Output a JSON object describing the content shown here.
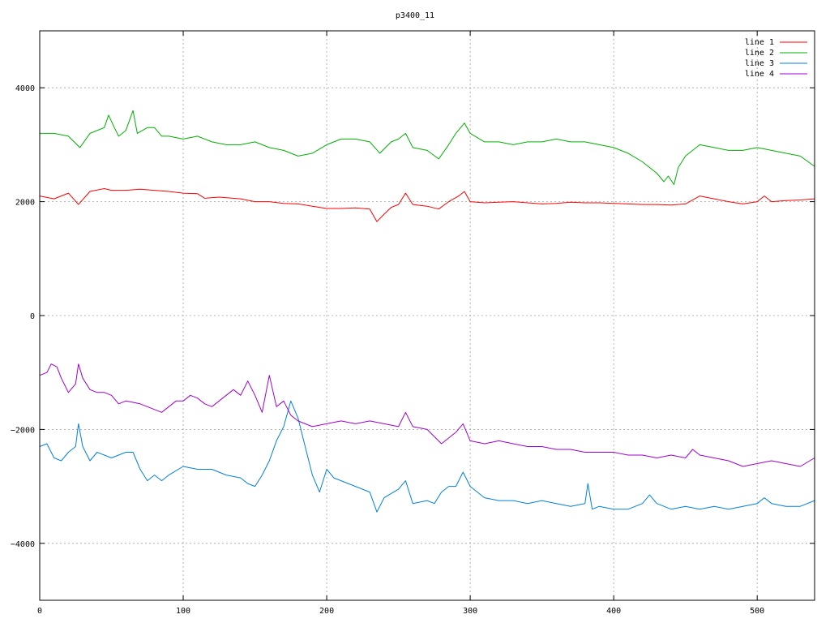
{
  "chart_data": {
    "type": "line",
    "title": "p3400_11",
    "xlim": [
      0,
      540
    ],
    "ylim": [
      -5000,
      5000
    ],
    "x_ticks": [
      0,
      100,
      200,
      300,
      400,
      500
    ],
    "y_ticks": [
      -4000,
      -2000,
      0,
      2000,
      4000
    ],
    "grid": true,
    "legend_position": "top-right",
    "series": [
      {
        "name": "line 1",
        "color": "#ff0000",
        "points": [
          [
            0,
            2100
          ],
          [
            10,
            2050
          ],
          [
            20,
            2150
          ],
          [
            27,
            1950
          ],
          [
            35,
            2180
          ],
          [
            45,
            2230
          ],
          [
            50,
            2200
          ],
          [
            60,
            2200
          ],
          [
            70,
            2220
          ],
          [
            80,
            2200
          ],
          [
            90,
            2180
          ],
          [
            100,
            2150
          ],
          [
            110,
            2140
          ],
          [
            115,
            2060
          ],
          [
            125,
            2080
          ],
          [
            140,
            2050
          ],
          [
            150,
            2000
          ],
          [
            160,
            2000
          ],
          [
            170,
            1970
          ],
          [
            180,
            1960
          ],
          [
            190,
            1920
          ],
          [
            200,
            1880
          ],
          [
            210,
            1880
          ],
          [
            220,
            1890
          ],
          [
            230,
            1870
          ],
          [
            235,
            1650
          ],
          [
            240,
            1780
          ],
          [
            245,
            1900
          ],
          [
            250,
            1950
          ],
          [
            255,
            2150
          ],
          [
            260,
            1950
          ],
          [
            270,
            1920
          ],
          [
            278,
            1870
          ],
          [
            285,
            2000
          ],
          [
            292,
            2100
          ],
          [
            296,
            2180
          ],
          [
            300,
            2000
          ],
          [
            310,
            1980
          ],
          [
            320,
            1990
          ],
          [
            330,
            2000
          ],
          [
            340,
            1980
          ],
          [
            350,
            1960
          ],
          [
            360,
            1970
          ],
          [
            370,
            1990
          ],
          [
            380,
            1980
          ],
          [
            390,
            1980
          ],
          [
            400,
            1970
          ],
          [
            410,
            1960
          ],
          [
            420,
            1950
          ],
          [
            430,
            1950
          ],
          [
            440,
            1940
          ],
          [
            450,
            1960
          ],
          [
            460,
            2100
          ],
          [
            470,
            2050
          ],
          [
            480,
            2000
          ],
          [
            490,
            1960
          ],
          [
            500,
            2000
          ],
          [
            505,
            2100
          ],
          [
            510,
            2000
          ],
          [
            520,
            2020
          ],
          [
            530,
            2030
          ],
          [
            540,
            2050
          ]
        ]
      },
      {
        "name": "line 2",
        "color": "#00b000",
        "points": [
          [
            0,
            3200
          ],
          [
            10,
            3200
          ],
          [
            20,
            3150
          ],
          [
            28,
            2950
          ],
          [
            35,
            3200
          ],
          [
            45,
            3300
          ],
          [
            48,
            3520
          ],
          [
            52,
            3300
          ],
          [
            55,
            3150
          ],
          [
            60,
            3250
          ],
          [
            65,
            3600
          ],
          [
            68,
            3200
          ],
          [
            75,
            3300
          ],
          [
            80,
            3300
          ],
          [
            85,
            3150
          ],
          [
            90,
            3150
          ],
          [
            100,
            3100
          ],
          [
            110,
            3150
          ],
          [
            120,
            3050
          ],
          [
            130,
            3000
          ],
          [
            140,
            3000
          ],
          [
            150,
            3050
          ],
          [
            160,
            2950
          ],
          [
            170,
            2900
          ],
          [
            180,
            2800
          ],
          [
            190,
            2850
          ],
          [
            200,
            3000
          ],
          [
            210,
            3100
          ],
          [
            220,
            3100
          ],
          [
            230,
            3050
          ],
          [
            237,
            2850
          ],
          [
            245,
            3050
          ],
          [
            250,
            3100
          ],
          [
            255,
            3200
          ],
          [
            260,
            2950
          ],
          [
            270,
            2900
          ],
          [
            278,
            2750
          ],
          [
            285,
            3000
          ],
          [
            290,
            3200
          ],
          [
            296,
            3380
          ],
          [
            300,
            3200
          ],
          [
            310,
            3050
          ],
          [
            320,
            3050
          ],
          [
            330,
            3000
          ],
          [
            340,
            3050
          ],
          [
            350,
            3050
          ],
          [
            360,
            3100
          ],
          [
            370,
            3050
          ],
          [
            380,
            3050
          ],
          [
            390,
            3000
          ],
          [
            400,
            2950
          ],
          [
            410,
            2850
          ],
          [
            420,
            2700
          ],
          [
            430,
            2500
          ],
          [
            435,
            2350
          ],
          [
            438,
            2450
          ],
          [
            442,
            2300
          ],
          [
            445,
            2600
          ],
          [
            450,
            2800
          ],
          [
            460,
            3000
          ],
          [
            470,
            2950
          ],
          [
            480,
            2900
          ],
          [
            490,
            2900
          ],
          [
            500,
            2950
          ],
          [
            510,
            2900
          ],
          [
            520,
            2850
          ],
          [
            530,
            2800
          ],
          [
            540,
            2620
          ]
        ]
      },
      {
        "name": "line 3",
        "color": "#0080e0",
        "points": [
          [
            0,
            -2300
          ],
          [
            5,
            -2250
          ],
          [
            10,
            -2500
          ],
          [
            15,
            -2550
          ],
          [
            20,
            -2400
          ],
          [
            25,
            -2300
          ],
          [
            27,
            -1900
          ],
          [
            30,
            -2300
          ],
          [
            35,
            -2550
          ],
          [
            40,
            -2400
          ],
          [
            50,
            -2500
          ],
          [
            60,
            -2400
          ],
          [
            65,
            -2400
          ],
          [
            70,
            -2700
          ],
          [
            75,
            -2900
          ],
          [
            80,
            -2800
          ],
          [
            85,
            -2900
          ],
          [
            90,
            -2800
          ],
          [
            100,
            -2650
          ],
          [
            110,
            -2700
          ],
          [
            120,
            -2700
          ],
          [
            130,
            -2800
          ],
          [
            140,
            -2850
          ],
          [
            145,
            -2950
          ],
          [
            150,
            -3000
          ],
          [
            155,
            -2800
          ],
          [
            160,
            -2550
          ],
          [
            165,
            -2200
          ],
          [
            170,
            -1950
          ],
          [
            175,
            -1500
          ],
          [
            180,
            -1800
          ],
          [
            185,
            -2300
          ],
          [
            190,
            -2800
          ],
          [
            195,
            -3100
          ],
          [
            200,
            -2700
          ],
          [
            205,
            -2850
          ],
          [
            210,
            -2900
          ],
          [
            220,
            -3000
          ],
          [
            230,
            -3100
          ],
          [
            235,
            -3450
          ],
          [
            240,
            -3200
          ],
          [
            250,
            -3050
          ],
          [
            255,
            -2900
          ],
          [
            260,
            -3300
          ],
          [
            270,
            -3250
          ],
          [
            275,
            -3300
          ],
          [
            280,
            -3100
          ],
          [
            285,
            -3000
          ],
          [
            290,
            -3000
          ],
          [
            295,
            -2750
          ],
          [
            300,
            -3000
          ],
          [
            310,
            -3200
          ],
          [
            320,
            -3250
          ],
          [
            330,
            -3250
          ],
          [
            340,
            -3300
          ],
          [
            350,
            -3250
          ],
          [
            360,
            -3300
          ],
          [
            370,
            -3350
          ],
          [
            380,
            -3300
          ],
          [
            382,
            -2950
          ],
          [
            385,
            -3400
          ],
          [
            390,
            -3350
          ],
          [
            400,
            -3400
          ],
          [
            410,
            -3400
          ],
          [
            420,
            -3300
          ],
          [
            425,
            -3150
          ],
          [
            430,
            -3300
          ],
          [
            440,
            -3400
          ],
          [
            450,
            -3350
          ],
          [
            460,
            -3400
          ],
          [
            470,
            -3350
          ],
          [
            480,
            -3400
          ],
          [
            490,
            -3350
          ],
          [
            500,
            -3300
          ],
          [
            505,
            -3200
          ],
          [
            510,
            -3300
          ],
          [
            520,
            -3350
          ],
          [
            530,
            -3350
          ],
          [
            540,
            -3250
          ]
        ]
      },
      {
        "name": "line 4",
        "color": "#a000d0",
        "points": [
          [
            0,
            -1050
          ],
          [
            5,
            -1000
          ],
          [
            8,
            -850
          ],
          [
            12,
            -900
          ],
          [
            15,
            -1100
          ],
          [
            20,
            -1350
          ],
          [
            25,
            -1200
          ],
          [
            27,
            -850
          ],
          [
            30,
            -1100
          ],
          [
            35,
            -1300
          ],
          [
            40,
            -1350
          ],
          [
            45,
            -1350
          ],
          [
            50,
            -1400
          ],
          [
            55,
            -1550
          ],
          [
            60,
            -1500
          ],
          [
            70,
            -1550
          ],
          [
            80,
            -1650
          ],
          [
            85,
            -1700
          ],
          [
            90,
            -1600
          ],
          [
            95,
            -1500
          ],
          [
            100,
            -1500
          ],
          [
            105,
            -1400
          ],
          [
            110,
            -1450
          ],
          [
            115,
            -1550
          ],
          [
            120,
            -1600
          ],
          [
            125,
            -1500
          ],
          [
            130,
            -1400
          ],
          [
            135,
            -1300
          ],
          [
            140,
            -1400
          ],
          [
            145,
            -1150
          ],
          [
            150,
            -1400
          ],
          [
            155,
            -1700
          ],
          [
            160,
            -1050
          ],
          [
            165,
            -1600
          ],
          [
            170,
            -1500
          ],
          [
            175,
            -1750
          ],
          [
            180,
            -1850
          ],
          [
            185,
            -1900
          ],
          [
            190,
            -1950
          ],
          [
            200,
            -1900
          ],
          [
            210,
            -1850
          ],
          [
            220,
            -1900
          ],
          [
            230,
            -1850
          ],
          [
            240,
            -1900
          ],
          [
            250,
            -1950
          ],
          [
            255,
            -1700
          ],
          [
            260,
            -1950
          ],
          [
            270,
            -2000
          ],
          [
            280,
            -2250
          ],
          [
            290,
            -2050
          ],
          [
            295,
            -1900
          ],
          [
            300,
            -2200
          ],
          [
            310,
            -2250
          ],
          [
            320,
            -2200
          ],
          [
            330,
            -2250
          ],
          [
            340,
            -2300
          ],
          [
            350,
            -2300
          ],
          [
            360,
            -2350
          ],
          [
            370,
            -2350
          ],
          [
            380,
            -2400
          ],
          [
            390,
            -2400
          ],
          [
            400,
            -2400
          ],
          [
            410,
            -2450
          ],
          [
            420,
            -2450
          ],
          [
            430,
            -2500
          ],
          [
            440,
            -2450
          ],
          [
            450,
            -2500
          ],
          [
            455,
            -2350
          ],
          [
            460,
            -2450
          ],
          [
            470,
            -2500
          ],
          [
            480,
            -2550
          ],
          [
            490,
            -2650
          ],
          [
            500,
            -2600
          ],
          [
            510,
            -2550
          ],
          [
            520,
            -2600
          ],
          [
            530,
            -2650
          ],
          [
            540,
            -2500
          ]
        ]
      }
    ]
  }
}
